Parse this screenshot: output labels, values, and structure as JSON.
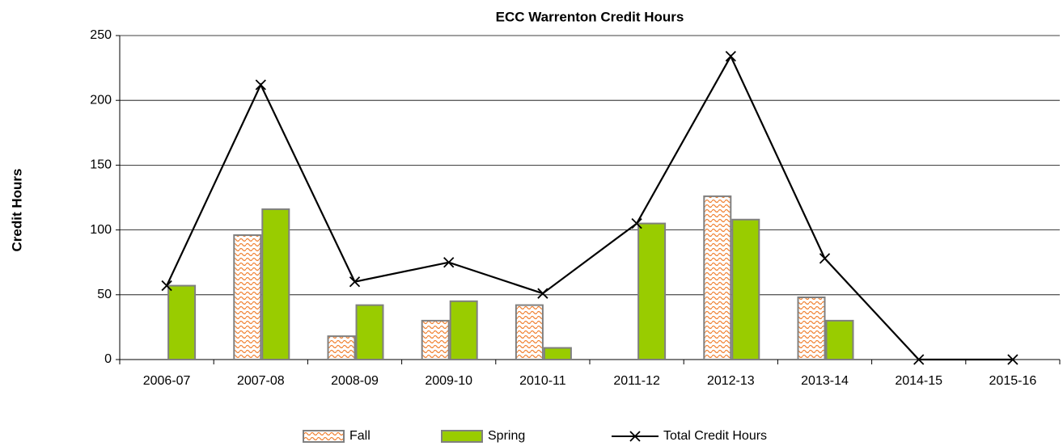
{
  "chart_data": {
    "type": "bar",
    "title": "ECC Warrenton Credit Hours",
    "y_label": "Credit Hours",
    "categories": [
      "2006-07",
      "2007-08",
      "2008-09",
      "2009-10",
      "2010-11",
      "2011-12",
      "2012-13",
      "2013-14",
      "2014-15",
      "2015-16"
    ],
    "series": [
      {
        "name": "Fall",
        "type": "bar",
        "color": "#f08030",
        "values": [
          0,
          96,
          18,
          30,
          42,
          0,
          126,
          48,
          0,
          0
        ]
      },
      {
        "name": "Spring",
        "type": "bar",
        "color": "#99cc00",
        "values": [
          57,
          116,
          42,
          45,
          9,
          105,
          108,
          30,
          0,
          0
        ]
      },
      {
        "name": "Total Credit Hours",
        "type": "line",
        "color": "#000000",
        "values": [
          57,
          212,
          60,
          75,
          51,
          105,
          234,
          78,
          0,
          0
        ]
      }
    ],
    "ylim": [
      0,
      250
    ],
    "yticks": [
      0,
      50,
      100,
      150,
      200,
      250
    ],
    "grid": true,
    "legend": "bottom"
  }
}
